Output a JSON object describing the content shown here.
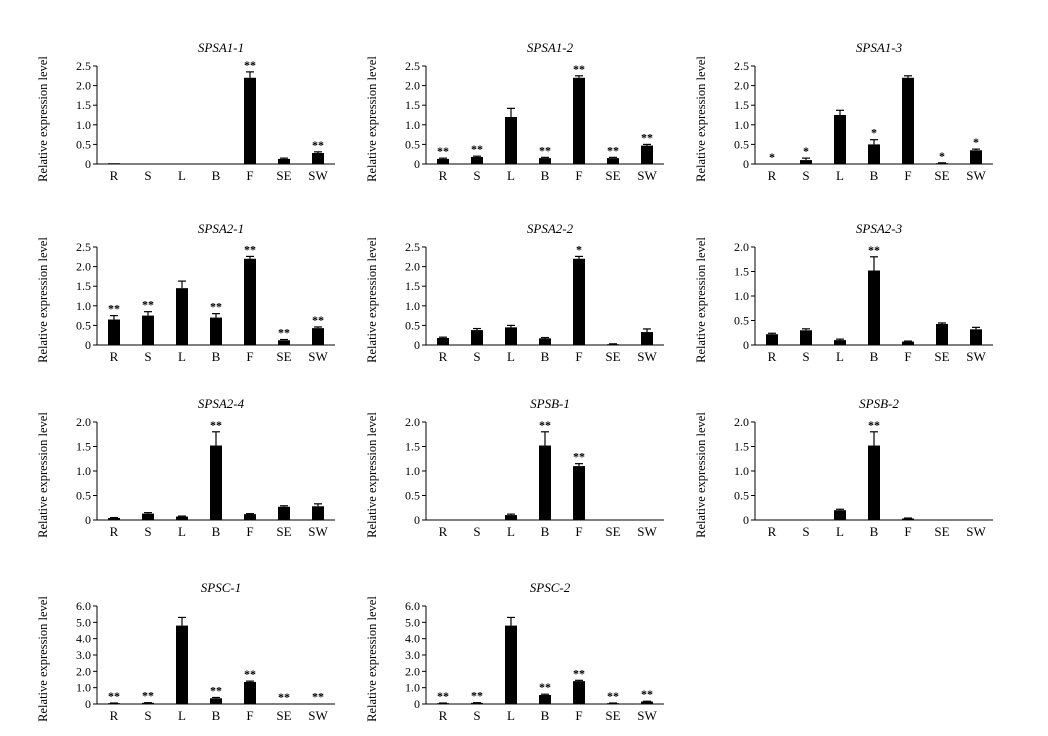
{
  "chart_data": [
    {
      "type": "bar",
      "title": "SPSA1-1",
      "ylabel": "Relative expression level",
      "categories": [
        "R",
        "S",
        "L",
        "B",
        "F",
        "SE",
        "SW"
      ],
      "ylim": [
        0,
        2.5
      ],
      "yticks": [
        "0",
        "0.5",
        "1.0",
        "1.5",
        "2.0",
        "2.5"
      ],
      "values": [
        0.02,
        0.01,
        0.0,
        0.0,
        2.2,
        0.13,
        0.28
      ],
      "errors": [
        0,
        0,
        0,
        0,
        0.15,
        0.02,
        0.03
      ],
      "significance": [
        "",
        "",
        "",
        "",
        "**",
        "",
        "**"
      ]
    },
    {
      "type": "bar",
      "title": "SPSA1-2",
      "ylabel": "Relative expression level",
      "categories": [
        "R",
        "S",
        "L",
        "B",
        "F",
        "SE",
        "SW"
      ],
      "ylim": [
        0,
        2.5
      ],
      "yticks": [
        "0",
        "0.5",
        "1.0",
        "1.5",
        "2.0",
        "2.5"
      ],
      "values": [
        0.13,
        0.18,
        1.2,
        0.15,
        2.2,
        0.15,
        0.47
      ],
      "errors": [
        0.02,
        0.02,
        0.22,
        0.02,
        0.05,
        0.02,
        0.03
      ],
      "significance": [
        "**",
        "**",
        "",
        "**",
        "**",
        "**",
        "**"
      ]
    },
    {
      "type": "bar",
      "title": "SPSA1-3",
      "ylabel": "Relative expression level",
      "categories": [
        "R",
        "S",
        "L",
        "B",
        "F",
        "SE",
        "SW"
      ],
      "ylim": [
        0,
        2.5
      ],
      "yticks": [
        "0",
        "0.5",
        "1.0",
        "1.5",
        "2.0",
        "2.5"
      ],
      "values": [
        0.0,
        0.1,
        1.25,
        0.5,
        2.2,
        0.02,
        0.35
      ],
      "errors": [
        0,
        0.05,
        0.12,
        0.12,
        0.05,
        0.01,
        0.03
      ],
      "significance": [
        "*",
        "*",
        "",
        "*",
        "",
        "*",
        "*"
      ]
    },
    {
      "type": "bar",
      "title": "SPSA2-1",
      "ylabel": "Relative expression level",
      "categories": [
        "R",
        "S",
        "L",
        "B",
        "F",
        "SE",
        "SW"
      ],
      "ylim": [
        0,
        2.5
      ],
      "yticks": [
        "0",
        "0.5",
        "1.0",
        "1.5",
        "2.0",
        "2.5"
      ],
      "values": [
        0.65,
        0.75,
        1.45,
        0.7,
        2.2,
        0.12,
        0.43
      ],
      "errors": [
        0.1,
        0.1,
        0.18,
        0.1,
        0.06,
        0.02,
        0.03
      ],
      "significance": [
        "**",
        "**",
        "",
        "**",
        "**",
        "**",
        "**"
      ]
    },
    {
      "type": "bar",
      "title": "SPSA2-2",
      "ylabel": "Relative expression level",
      "categories": [
        "R",
        "S",
        "L",
        "B",
        "F",
        "SE",
        "SW"
      ],
      "ylim": [
        0,
        2.5
      ],
      "yticks": [
        "0",
        "0.5",
        "1.0",
        "1.5",
        "2.0",
        "2.5"
      ],
      "values": [
        0.18,
        0.38,
        0.45,
        0.17,
        2.2,
        0.02,
        0.33
      ],
      "errors": [
        0.02,
        0.04,
        0.05,
        0.02,
        0.06,
        0.01,
        0.08
      ],
      "significance": [
        "",
        "",
        "",
        "",
        "*",
        "",
        ""
      ]
    },
    {
      "type": "bar",
      "title": "SPSA2-3",
      "ylabel": "Relative expression level",
      "categories": [
        "R",
        "S",
        "L",
        "B",
        "F",
        "SE",
        "SW"
      ],
      "ylim": [
        0,
        2.0
      ],
      "yticks": [
        "0",
        "0.5",
        "1.0",
        "1.5",
        "2.0"
      ],
      "values": [
        0.22,
        0.3,
        0.1,
        1.52,
        0.07,
        0.43,
        0.32
      ],
      "errors": [
        0.02,
        0.03,
        0.02,
        0.28,
        0.01,
        0.02,
        0.04
      ],
      "significance": [
        "",
        "",
        "",
        "**",
        "",
        "",
        ""
      ]
    },
    {
      "type": "bar",
      "title": "SPSA2-4",
      "ylabel": "Relative expression level",
      "categories": [
        "R",
        "S",
        "L",
        "B",
        "F",
        "SE",
        "SW"
      ],
      "ylim": [
        0,
        2.0
      ],
      "yticks": [
        "0",
        "0.5",
        "1.0",
        "1.5",
        "2.0"
      ],
      "values": [
        0.04,
        0.13,
        0.07,
        1.52,
        0.12,
        0.27,
        0.28
      ],
      "errors": [
        0.01,
        0.02,
        0.01,
        0.28,
        0.01,
        0.02,
        0.05
      ],
      "significance": [
        "",
        "",
        "",
        "**",
        "",
        "",
        ""
      ]
    },
    {
      "type": "bar",
      "title": "SPSB-1",
      "ylabel": "Relative expression level",
      "categories": [
        "R",
        "S",
        "L",
        "B",
        "F",
        "SE",
        "SW"
      ],
      "ylim": [
        0,
        2.0
      ],
      "yticks": [
        "0",
        "0.5",
        "1.0",
        "1.5",
        "2.0"
      ],
      "values": [
        0.0,
        0.0,
        0.1,
        1.52,
        1.1,
        0.0,
        0.01
      ],
      "errors": [
        0,
        0,
        0.02,
        0.28,
        0.05,
        0,
        0
      ],
      "significance": [
        "",
        "",
        "",
        "**",
        "**",
        "",
        ""
      ]
    },
    {
      "type": "bar",
      "title": "SPSB-2",
      "ylabel": "Relative expression level",
      "categories": [
        "R",
        "S",
        "L",
        "B",
        "F",
        "SE",
        "SW"
      ],
      "ylim": [
        0,
        2.0
      ],
      "yticks": [
        "0",
        "0.5",
        "1.0",
        "1.5",
        "2.0"
      ],
      "values": [
        0.0,
        0.0,
        0.2,
        1.52,
        0.03,
        0.0,
        0.01
      ],
      "errors": [
        0,
        0,
        0.02,
        0.28,
        0.01,
        0,
        0
      ],
      "significance": [
        "",
        "",
        "",
        "**",
        "",
        "",
        ""
      ]
    },
    {
      "type": "bar",
      "title": "SPSC-1",
      "ylabel": "Relative expression level",
      "categories": [
        "R",
        "S",
        "L",
        "B",
        "F",
        "SE",
        "SW"
      ],
      "ylim": [
        0,
        6.0
      ],
      "yticks": [
        "0",
        "1.0",
        "2.0",
        "3.0",
        "4.0",
        "5.0",
        "6.0"
      ],
      "values": [
        0.05,
        0.07,
        4.8,
        0.35,
        1.35,
        0.0,
        0.02
      ],
      "errors": [
        0.01,
        0.01,
        0.5,
        0.05,
        0.05,
        0,
        0
      ],
      "significance": [
        "**",
        "**",
        "",
        "**",
        "**",
        "**",
        "**"
      ]
    },
    {
      "type": "bar",
      "title": "SPSC-2",
      "ylabel": "Relative expression level",
      "categories": [
        "R",
        "S",
        "L",
        "B",
        "F",
        "SE",
        "SW"
      ],
      "ylim": [
        0,
        6.0
      ],
      "yticks": [
        "0",
        "1.0",
        "2.0",
        "3.0",
        "4.0",
        "5.0",
        "6.0"
      ],
      "values": [
        0.05,
        0.07,
        4.8,
        0.55,
        1.4,
        0.05,
        0.15
      ],
      "errors": [
        0.01,
        0.01,
        0.5,
        0.05,
        0.05,
        0.01,
        0.02
      ],
      "significance": [
        "**",
        "**",
        "",
        "**",
        "**",
        "**",
        "**"
      ]
    }
  ]
}
